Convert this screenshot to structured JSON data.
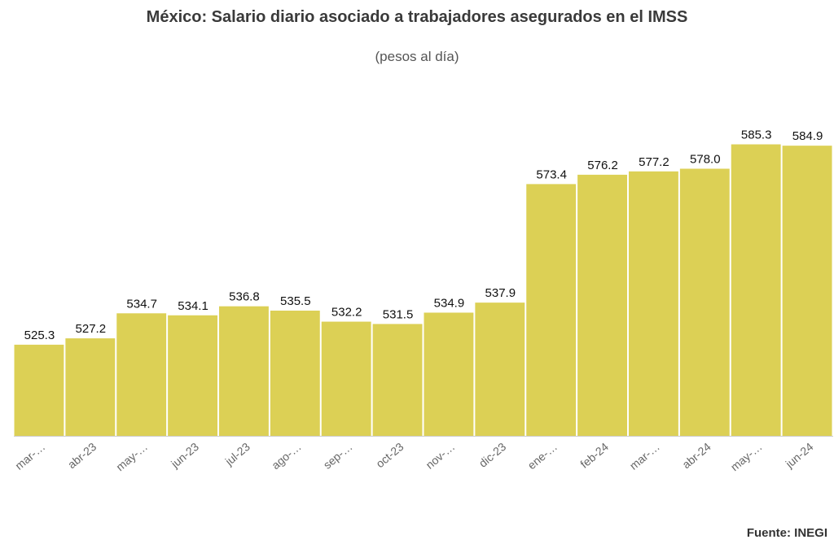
{
  "chart_data": {
    "type": "bar",
    "title": "México: Salario diario asociado a trabajadores asegurados en el IMSS",
    "subtitle": "(pesos al día)",
    "source": "Fuente: INEGI",
    "categories": [
      "mar-…",
      "abr-23",
      "may-…",
      "jun-23",
      "jul-23",
      "ago-…",
      "sep-…",
      "oct-23",
      "nov-…",
      "dic-23",
      "ene-…",
      "feb-24",
      "mar-…",
      "abr-24",
      "may-…",
      "jun-24"
    ],
    "values": [
      525.3,
      527.2,
      534.7,
      534.1,
      536.8,
      535.5,
      532.2,
      531.5,
      534.9,
      537.9,
      573.4,
      576.2,
      577.2,
      578.0,
      585.3,
      584.9
    ],
    "value_labels": [
      "525.3",
      "527.2",
      "534.7",
      "534.1",
      "536.8",
      "535.5",
      "532.2",
      "531.5",
      "534.9",
      "537.9",
      "573.4",
      "576.2",
      "577.2",
      "578.0",
      "585.3",
      "584.9"
    ],
    "ylim": [
      498,
      592
    ],
    "bar_color": "#dcd055",
    "grid": false,
    "legend": "none"
  }
}
